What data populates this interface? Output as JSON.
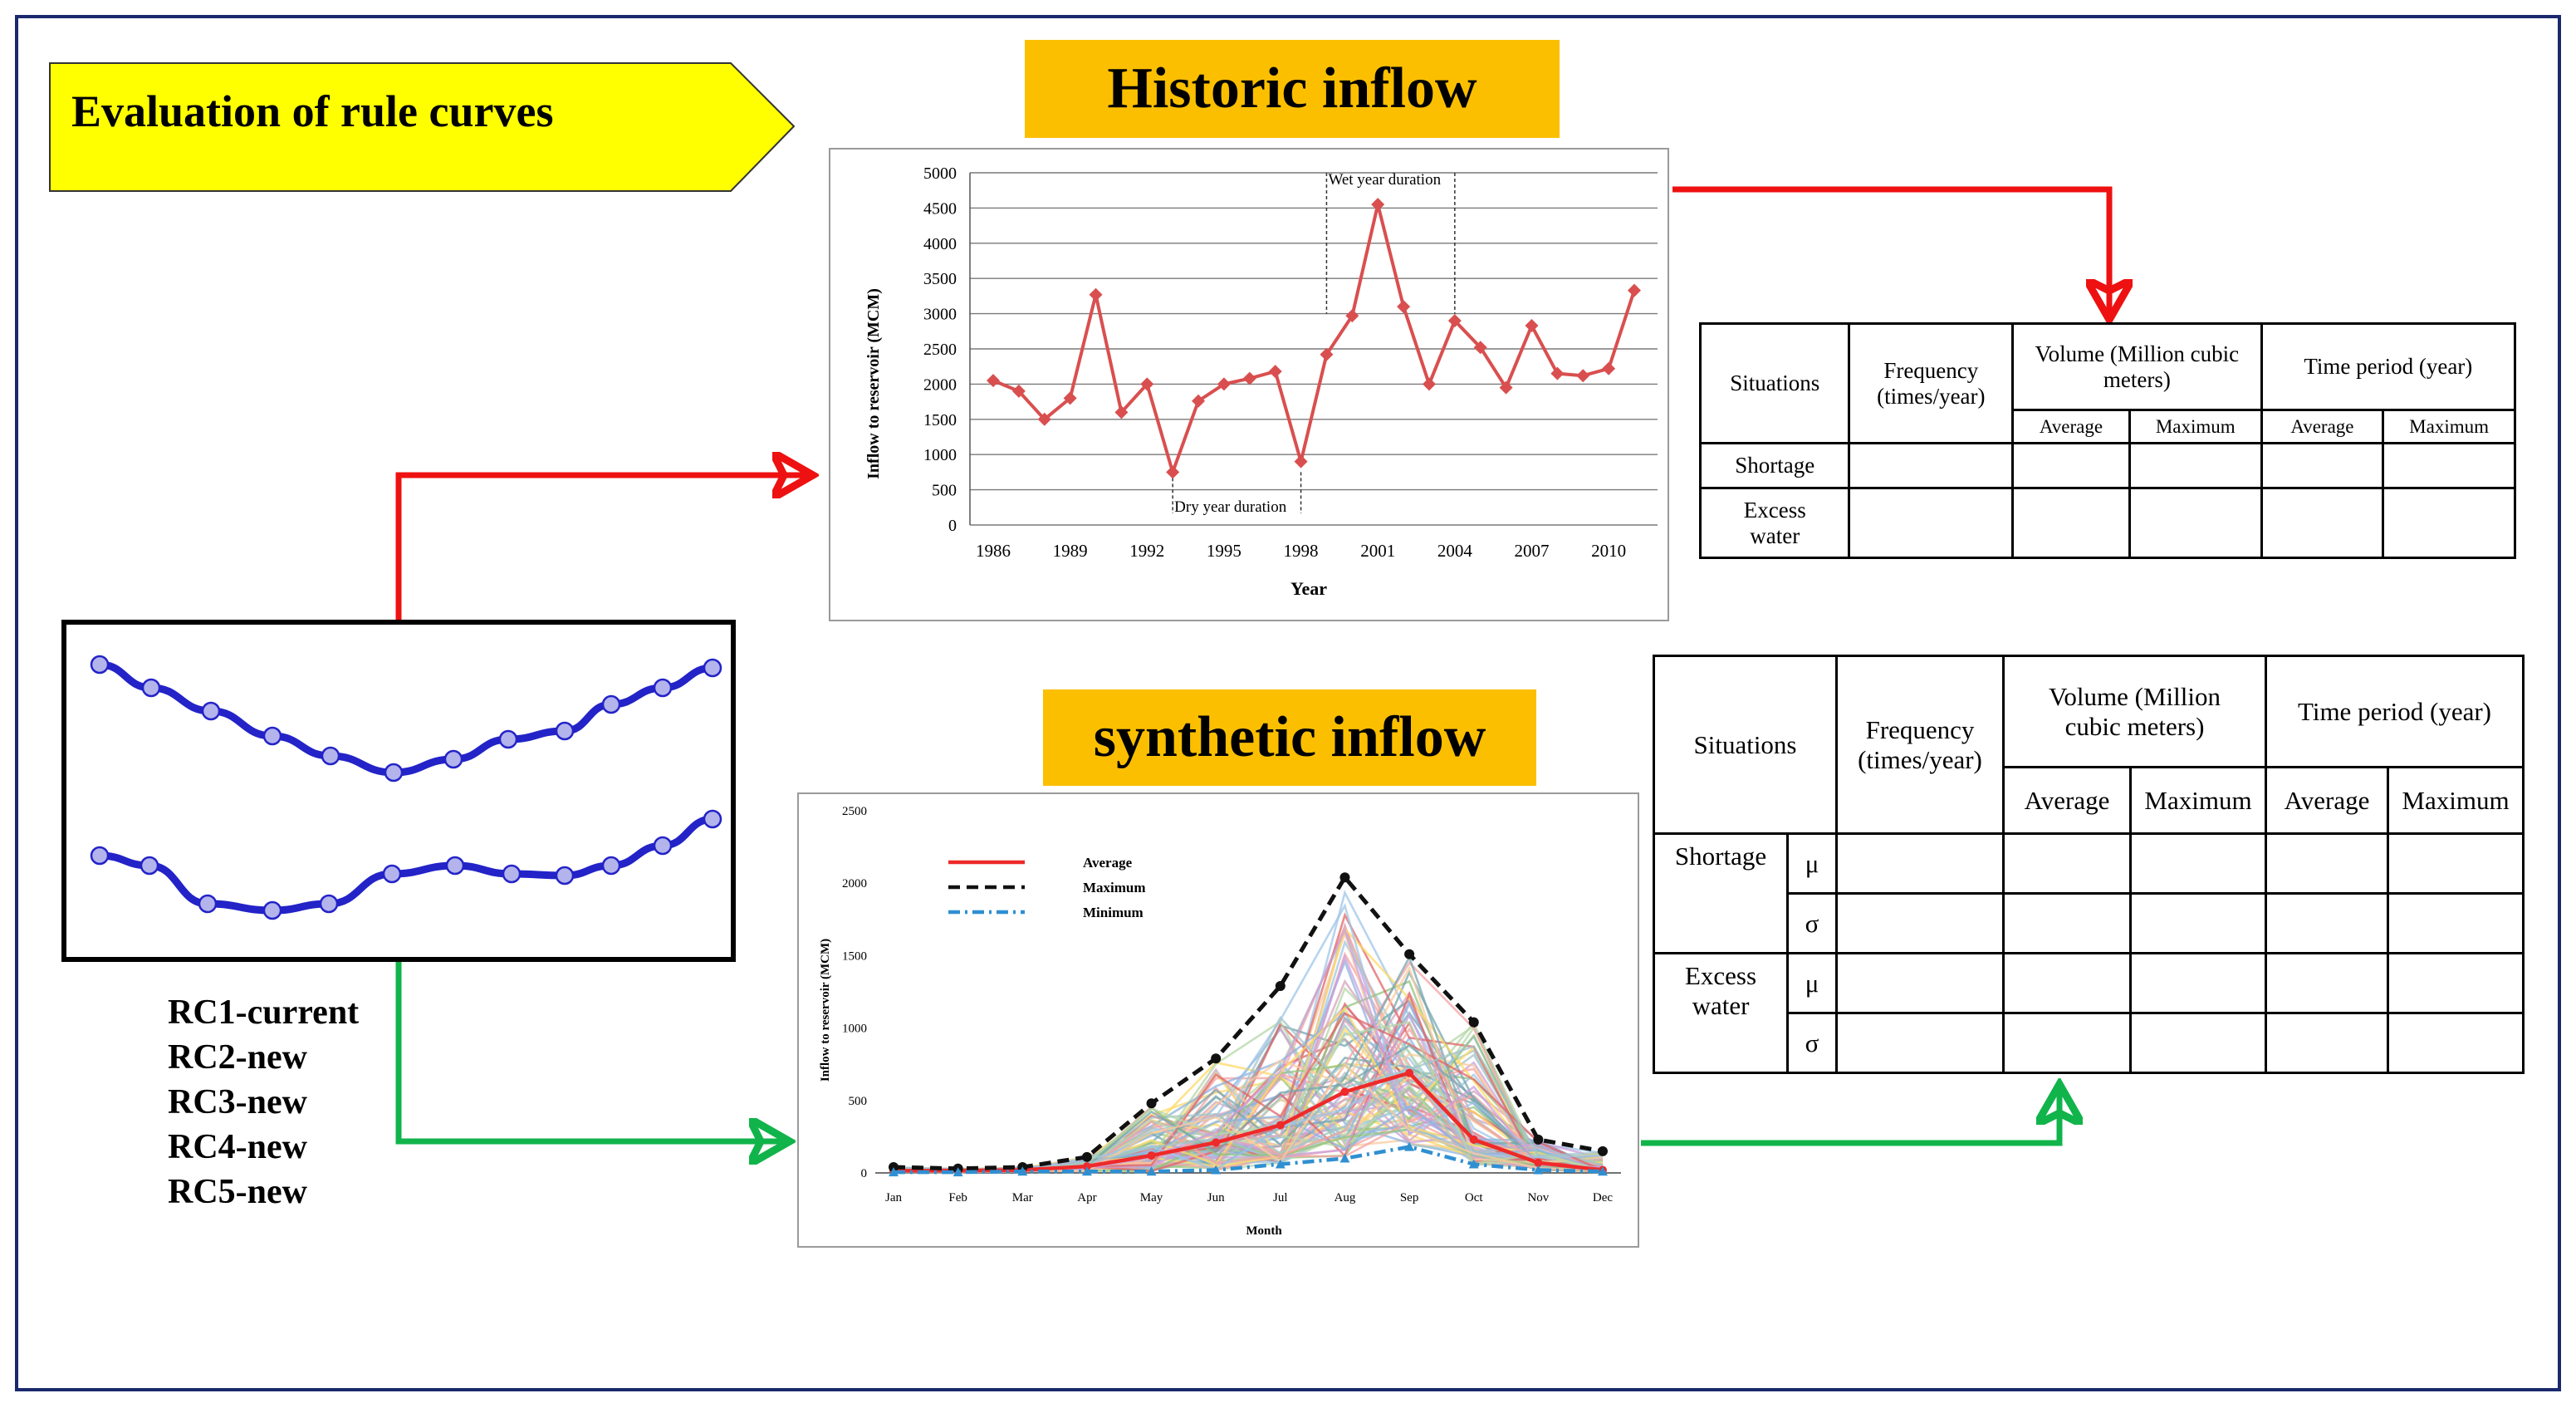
{
  "banner": {
    "label": "Evaluation of rule curves",
    "fill": "#ffff00"
  },
  "historic": {
    "title": "Historic inflow",
    "chart_data": {
      "type": "line",
      "xlabel": "Year",
      "ylabel": "Inflow to reservoir (MCM)",
      "ylim": [
        0,
        5000
      ],
      "yticks": [
        "0",
        "500",
        "1000",
        "1500",
        "2000",
        "2500",
        "3000",
        "3500",
        "4000",
        "4500",
        "5000"
      ],
      "xticks": [
        "1986",
        "1989",
        "1992",
        "1995",
        "1998",
        "2001",
        "2004",
        "2007",
        "2010"
      ],
      "grid": true,
      "color": "#d94f4f",
      "x": [
        1986,
        1987,
        1988,
        1989,
        1990,
        1991,
        1992,
        1993,
        1994,
        1995,
        1996,
        1997,
        1998,
        1999,
        2000,
        2001,
        2002,
        2003,
        2004,
        2005,
        2006,
        2007,
        2008,
        2009,
        2010,
        2011
      ],
      "values": [
        2050,
        1900,
        1500,
        1800,
        3270,
        1600,
        2000,
        750,
        1760,
        2000,
        2080,
        2180,
        900,
        2420,
        2970,
        4550,
        3100,
        2000,
        2900,
        2520,
        1950,
        2830,
        2150,
        2120,
        2220,
        3330
      ],
      "annotations": [
        {
          "text": "Wet year duration",
          "x_start": 1999,
          "x_end": 2004
        },
        {
          "text": "Dry year duration",
          "x_start": 1993,
          "x_end": 1998
        }
      ]
    }
  },
  "synthetic": {
    "title": "synthetic inflow",
    "chart_data": {
      "type": "line",
      "xlabel": "Month",
      "ylabel": "Inflow to reservoir (MCM)",
      "ylim": [
        0,
        2500
      ],
      "yticks": [
        "0",
        "500",
        "1000",
        "1500",
        "2000",
        "2500"
      ],
      "categories": [
        "Jan",
        "Feb",
        "Mar",
        "Apr",
        "May",
        "Jun",
        "Jul",
        "Aug",
        "Sep",
        "Oct",
        "Nov",
        "Dec"
      ],
      "legend_position": "top-left",
      "series": [
        {
          "name": "Average",
          "color": "#ee2a2a",
          "style": "solid",
          "values": [
            15,
            15,
            20,
            45,
            120,
            210,
            330,
            560,
            690,
            230,
            70,
            20
          ]
        },
        {
          "name": "Maximum",
          "color": "#111111",
          "style": "dashed",
          "values": [
            40,
            30,
            40,
            110,
            480,
            790,
            1290,
            2040,
            1510,
            1040,
            230,
            150
          ]
        },
        {
          "name": "Minimum",
          "color": "#2f8fd1",
          "style": "dashdot",
          "values": [
            5,
            5,
            10,
            10,
            10,
            20,
            60,
            100,
            180,
            60,
            20,
            10
          ]
        }
      ],
      "ensemble_note": "many synthetic series shown in pastel colors",
      "ensemble_colors": [
        "#f4a3a3",
        "#9fc5e8",
        "#b6d7a8",
        "#c9a0dc",
        "#f9cb9c",
        "#a2c4c9",
        "#ffd966",
        "#d5a6bd",
        "#8db3e2",
        "#93c47d",
        "#e06666",
        "#76a5af"
      ]
    }
  },
  "rule_curves": {
    "labels": [
      "RC1-current",
      "RC2-new",
      "RC3-new",
      "RC4-new",
      "RC5-new"
    ],
    "line_color": "#2323c8",
    "point_fill": "#b4b4ec"
  },
  "table1": {
    "situations": "Situations",
    "frequency": "Frequency (times/year)",
    "volume": "Volume (Million cubic meters)",
    "time_period": "Time period (year)",
    "average": "Average",
    "maximum": "Maximum",
    "rows": [
      "Shortage",
      "Excess water"
    ]
  },
  "table2": {
    "situations": "Situations",
    "frequency": "Frequency (times/year)",
    "volume": "Volume (Million cubic meters)",
    "time_period": "Time period (year)",
    "average": "Average",
    "maximum": "Maximum",
    "groups": [
      {
        "label": "Shortage",
        "stats": [
          "μ",
          "σ"
        ]
      },
      {
        "label": "Excess water",
        "stats": [
          "μ",
          "σ"
        ]
      }
    ]
  },
  "arrows": {
    "red": "#ee1111",
    "green": "#11b44a"
  }
}
